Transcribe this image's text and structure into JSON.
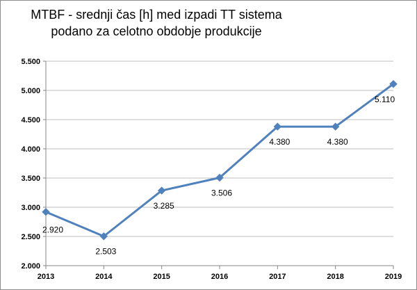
{
  "chart_data": {
    "type": "line",
    "title_line1": "MTBF - srednji čas [h] med izpadi TT sistema",
    "title_line2": "podano za celotno obdobje produkcije",
    "xlabel": "",
    "ylabel": "",
    "categories": [
      "2013",
      "2014",
      "2015",
      "2016",
      "2017",
      "2018",
      "2019"
    ],
    "series": [
      {
        "values": [
          2920,
          2503,
          3285,
          3506,
          4380,
          4380,
          5110
        ]
      }
    ],
    "data_labels": [
      "2.920",
      "2.503",
      "3.285",
      "3.506",
      "4.380",
      "4.380",
      "5.110"
    ],
    "ylim": [
      2000,
      5500
    ],
    "yticks": [
      2000,
      2500,
      3000,
      3500,
      4000,
      4500,
      5000,
      5500
    ],
    "ytick_labels": [
      "2.000",
      "2.500",
      "3.000",
      "3.500",
      "4.000",
      "4.500",
      "5.000",
      "5.500"
    ],
    "grid": "horizontal",
    "colors": {
      "line": "#4f81bd",
      "grid": "#bfbfbf",
      "axis": "#868686"
    }
  }
}
